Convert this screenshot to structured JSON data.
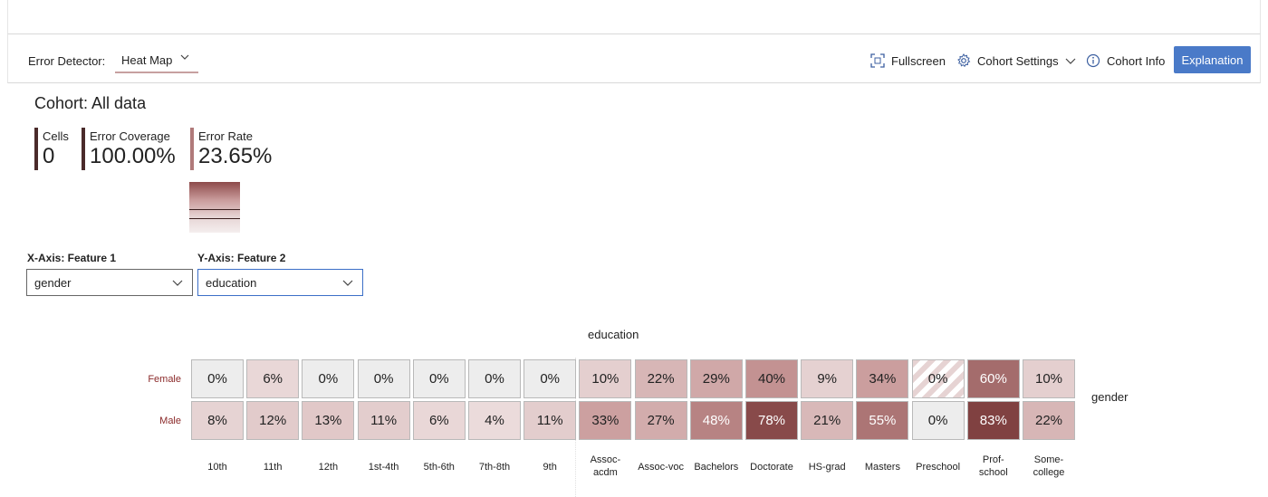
{
  "toolbar": {
    "error_detector_label": "Error Detector:",
    "detector_value": "Heat Map",
    "fullscreen_label": "Fullscreen",
    "cohort_settings_label": "Cohort Settings",
    "cohort_info_label": "Cohort Info",
    "explanation_label": "Explanation"
  },
  "cohort": {
    "title": "Cohort: All data",
    "metrics": {
      "cells_label": "Cells",
      "cells_value": "0",
      "coverage_label": "Error Coverage",
      "coverage_value": "100.00%",
      "rate_label": "Error Rate",
      "rate_value": "23.65%"
    }
  },
  "axes": {
    "x_label": "X-Axis: Feature 1",
    "x_value": "gender",
    "y_label": "Y-Axis: Feature 2",
    "y_value": "education"
  },
  "heatmap": {
    "title": "education",
    "right_label": "gender",
    "rows": [
      "Female",
      "Male"
    ],
    "columns": [
      "10th",
      "11th",
      "12th",
      "1st-4th",
      "5th-6th",
      "7th-8th",
      "9th",
      "Assoc-acdm",
      "Assoc-voc",
      "Bachelors",
      "Doctorate",
      "HS-grad",
      "Masters",
      "Preschool",
      "Prof-school",
      "Some-college"
    ],
    "column_display": [
      "10th",
      "11th",
      "12th",
      "1st-4th",
      "5th-6th",
      "7th-8th",
      "9th",
      "Assoc-\nacdm",
      "Assoc-voc",
      "Bachelors",
      "Doctorate",
      "HS-grad",
      "Masters",
      "Preschool",
      "Prof-\nschool",
      "Some-\ncollege"
    ],
    "values": [
      [
        0,
        6,
        0,
        0,
        0,
        0,
        0,
        10,
        22,
        29,
        40,
        9,
        34,
        0,
        60,
        10
      ],
      [
        8,
        12,
        13,
        11,
        6,
        4,
        11,
        33,
        27,
        48,
        78,
        21,
        55,
        0,
        83,
        22
      ]
    ],
    "hatched_cells": [
      [
        0,
        13
      ]
    ],
    "colors": {
      "zero": "#ededed",
      "low": "#efe3e3",
      "mid": "#c69595",
      "high": "#7d3d3d",
      "border": "#b9b9b9"
    }
  }
}
